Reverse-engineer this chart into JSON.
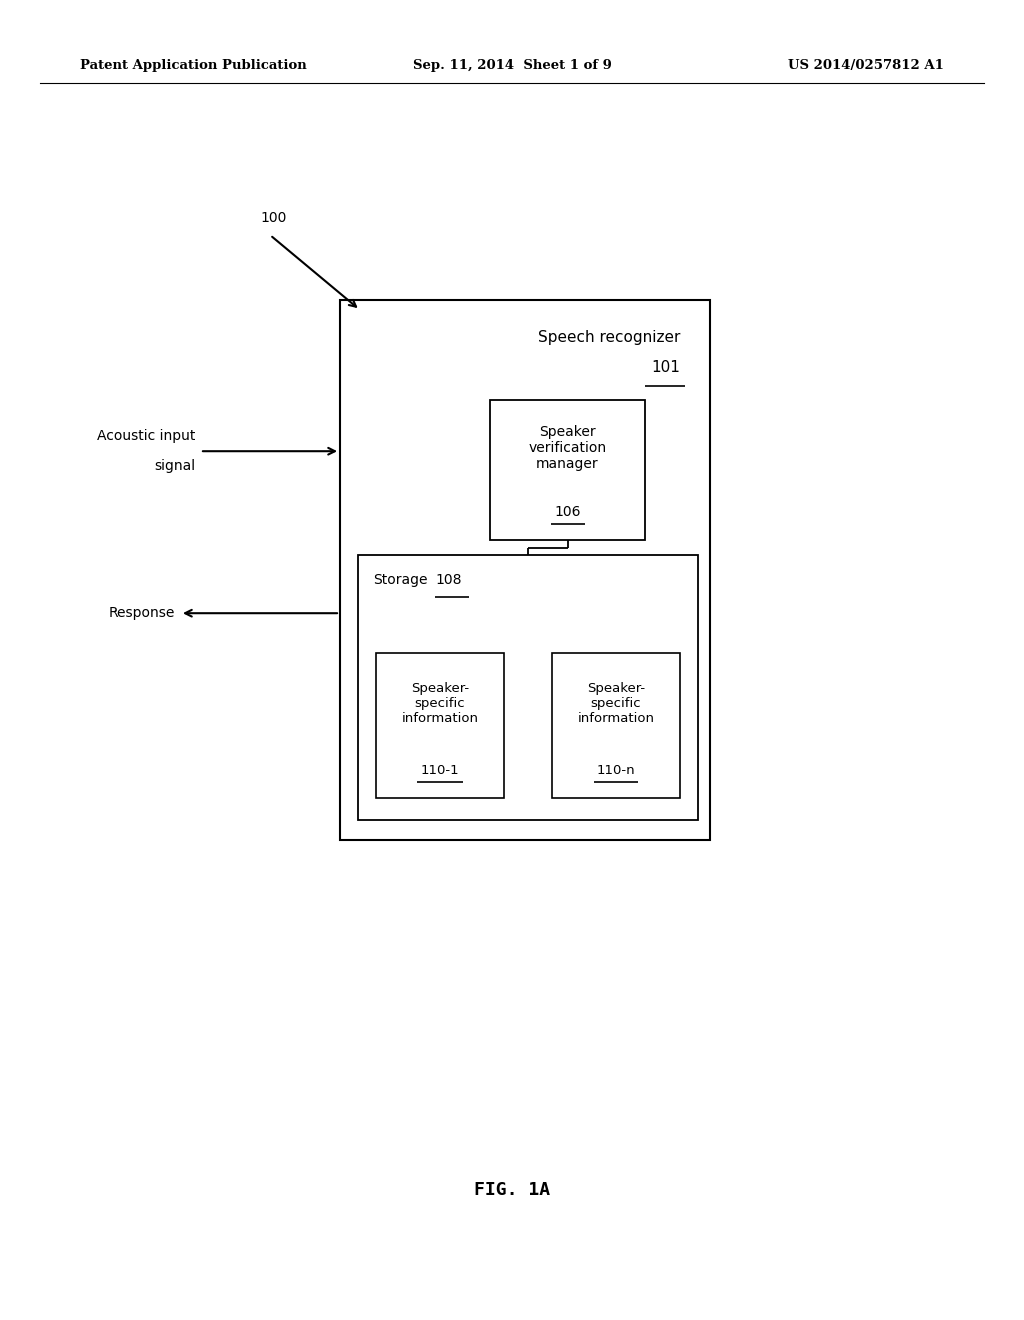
{
  "bg_color": "#ffffff",
  "text_color": "#000000",
  "header_left": "Patent Application Publication",
  "header_mid": "Sep. 11, 2014  Sheet 1 of 9",
  "header_right": "US 2014/0257812 A1",
  "fig_label": "FIG. 1A",
  "label_100": "100",
  "label_101": "101",
  "label_106": "106",
  "label_108": "108",
  "label_110_1": "110-1",
  "label_110_n": "110-n"
}
